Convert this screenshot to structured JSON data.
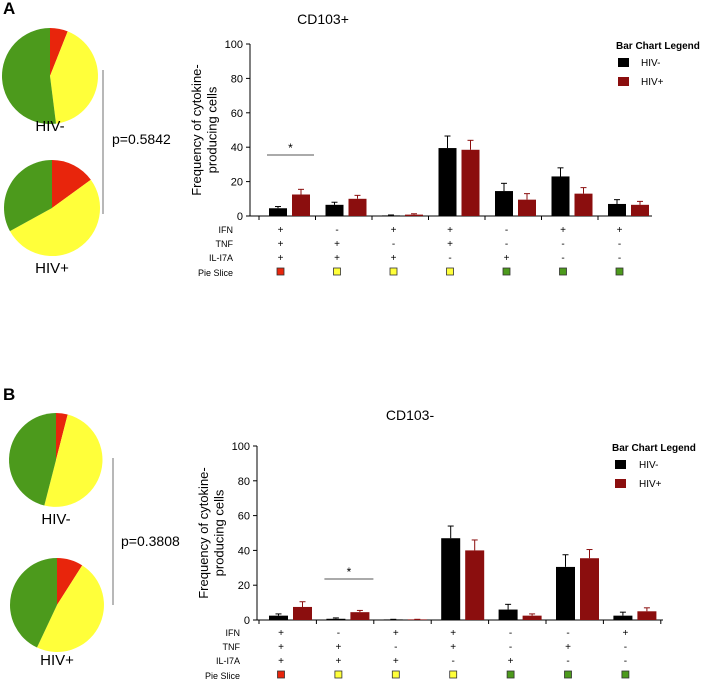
{
  "colors": {
    "hiv_neg": "#000000",
    "hiv_pos": "#8b0e0e",
    "slice_red": "#e8250c",
    "slice_yellow": "#ffff3a",
    "slice_green": "#4c9a1c",
    "bracket": "#888888"
  },
  "chart_data": [
    {
      "panel_label": "A",
      "type": "bar",
      "title": "CD103+",
      "ylabel_line1": "Frequency of cytokine-",
      "ylabel_line2": "producing cells",
      "ylim": [
        0,
        100
      ],
      "yticks": [
        "0",
        "20",
        "40",
        "60",
        "80",
        "100"
      ],
      "legend_title": "Bar Chart Legend",
      "legend_position": "top-right",
      "series": [
        {
          "name": "HIV-",
          "values": [
            4.5,
            6.5,
            0.3,
            39.5,
            14.5,
            23,
            7
          ],
          "errors": [
            1,
            1.5,
            0.3,
            7,
            4.5,
            5,
            2.5
          ]
        },
        {
          "name": "HIV+",
          "values": [
            12.5,
            10,
            0.8,
            38.5,
            9.5,
            13,
            6.5
          ],
          "errors": [
            3,
            2,
            0.5,
            5.5,
            3.5,
            3.5,
            2
          ]
        }
      ],
      "row_labels": [
        "IFN",
        "TNF",
        "IL-I7A",
        "Pie Slice"
      ],
      "combos": [
        {
          "ifn": "+",
          "tnf": "+",
          "il17a": "+",
          "slice": "red"
        },
        {
          "ifn": "-",
          "tnf": "+",
          "il17a": "+",
          "slice": "yellow"
        },
        {
          "ifn": "+",
          "tnf": "-",
          "il17a": "+",
          "slice": "yellow"
        },
        {
          "ifn": "+",
          "tnf": "+",
          "il17a": "-",
          "slice": "yellow"
        },
        {
          "ifn": "-",
          "tnf": "-",
          "il17a": "+",
          "slice": "green"
        },
        {
          "ifn": "+",
          "tnf": "-",
          "il17a": "-",
          "slice": "green"
        },
        {
          "ifn": "+",
          "tnf": "-",
          "il17a": "-",
          "slice": "green"
        }
      ],
      "significance": {
        "group_index": 0,
        "label": "*"
      },
      "pies": [
        {
          "label": "HIV-",
          "slices": [
            {
              "color": "red",
              "percent": 6
            },
            {
              "color": "yellow",
              "percent": 42
            },
            {
              "color": "green",
              "percent": 52
            }
          ]
        },
        {
          "label": "HIV+",
          "slices": [
            {
              "color": "red",
              "percent": 15
            },
            {
              "color": "yellow",
              "percent": 52
            },
            {
              "color": "green",
              "percent": 33
            }
          ]
        }
      ],
      "pvalue": "p=0.5842"
    },
    {
      "panel_label": "B",
      "type": "bar",
      "title": "CD103-",
      "ylabel_line1": "Frequency of cytokine-",
      "ylabel_line2": "producing cells",
      "ylim": [
        0,
        100
      ],
      "yticks": [
        "0",
        "20",
        "40",
        "60",
        "80",
        "100"
      ],
      "legend_title": "Bar Chart Legend",
      "legend_position": "top-right",
      "series": [
        {
          "name": "HIV-",
          "values": [
            2.5,
            0.7,
            0.2,
            47,
            6,
            30.5,
            2.5
          ],
          "errors": [
            1,
            0.5,
            0.2,
            7,
            3,
            7,
            2
          ]
        },
        {
          "name": "HIV+",
          "values": [
            7.5,
            4.5,
            0.2,
            40,
            2.5,
            35.5,
            5
          ],
          "errors": [
            3,
            1,
            0.2,
            6,
            1,
            5,
            2
          ]
        }
      ],
      "row_labels": [
        "IFN",
        "TNF",
        "IL-I7A",
        "Pie Slice"
      ],
      "combos": [
        {
          "ifn": "+",
          "tnf": "+",
          "il17a": "+",
          "slice": "red"
        },
        {
          "ifn": "-",
          "tnf": "+",
          "il17a": "+",
          "slice": "yellow"
        },
        {
          "ifn": "+",
          "tnf": "-",
          "il17a": "+",
          "slice": "yellow"
        },
        {
          "ifn": "+",
          "tnf": "+",
          "il17a": "-",
          "slice": "yellow"
        },
        {
          "ifn": "-",
          "tnf": "-",
          "il17a": "+",
          "slice": "green"
        },
        {
          "ifn": "-",
          "tnf": "+",
          "il17a": "-",
          "slice": "green"
        },
        {
          "ifn": "+",
          "tnf": "-",
          "il17a": "-",
          "slice": "green"
        }
      ],
      "significance": {
        "group_index": 1,
        "label": "*"
      },
      "pies": [
        {
          "label": "HIV-",
          "slices": [
            {
              "color": "red",
              "percent": 4
            },
            {
              "color": "yellow",
              "percent": 50
            },
            {
              "color": "green",
              "percent": 46
            }
          ]
        },
        {
          "label": "HIV+",
          "slices": [
            {
              "color": "red",
              "percent": 9
            },
            {
              "color": "yellow",
              "percent": 48
            },
            {
              "color": "green",
              "percent": 43
            }
          ]
        }
      ],
      "pvalue": "p=0.3808"
    }
  ]
}
